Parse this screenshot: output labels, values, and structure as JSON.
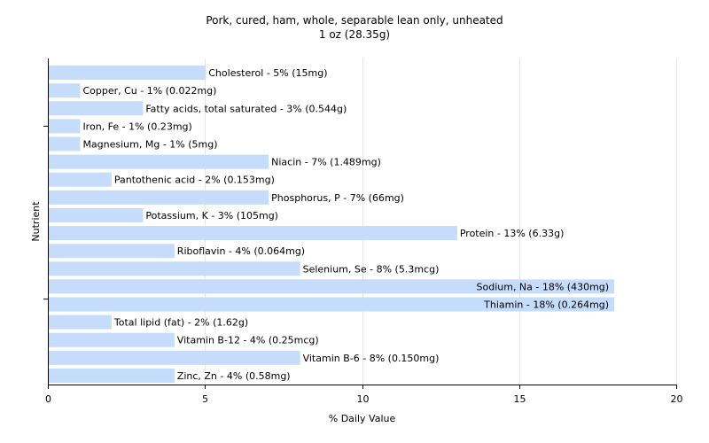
{
  "chart_data": {
    "type": "bar",
    "orientation": "horizontal",
    "title": "Pork, cured, ham, whole, separable lean only, unheated",
    "subtitle": "1 oz (28.35g)",
    "xlabel": "% Daily Value",
    "ylabel": "Nutrient",
    "xlim": [
      0,
      20
    ],
    "xticks": [
      "0",
      "5",
      "10",
      "15",
      "20"
    ],
    "grid": "vertical",
    "bar_color": "#c6dcfb",
    "categories": [
      "Cholesterol",
      "Copper, Cu",
      "Fatty acids, total saturated",
      "Iron, Fe",
      "Magnesium, Mg",
      "Niacin",
      "Pantothenic acid",
      "Phosphorus, P",
      "Potassium, K",
      "Protein",
      "Riboflavin",
      "Selenium, Se",
      "Sodium, Na",
      "Thiamin",
      "Total lipid (fat)",
      "Vitamin B-12",
      "Vitamin B-6",
      "Zinc, Zn"
    ],
    "values": [
      5,
      1,
      3,
      1,
      1,
      7,
      2,
      7,
      3,
      13,
      4,
      8,
      18,
      18,
      2,
      4,
      8,
      4
    ],
    "labels": [
      "Cholesterol - 5% (15mg)",
      "Copper, Cu - 1% (0.022mg)",
      "Fatty acids, total saturated - 3% (0.544g)",
      "Iron, Fe - 1% (0.23mg)",
      "Magnesium, Mg - 1% (5mg)",
      "Niacin - 7% (1.489mg)",
      "Pantothenic acid - 2% (0.153mg)",
      "Phosphorus, P - 7% (66mg)",
      "Potassium, K - 3% (105mg)",
      "Protein - 13% (6.33g)",
      "Riboflavin - 4% (0.064mg)",
      "Selenium, Se - 8% (5.3mcg)",
      "Sodium, Na - 18% (430mg)",
      "Thiamin - 18% (0.264mg)",
      "Total lipid (fat) - 2% (1.62g)",
      "Vitamin B-12 - 4% (0.25mcg)",
      "Vitamin B-6 - 8% (0.150mg)",
      "Zinc, Zn - 4% (0.58mg)"
    ]
  }
}
